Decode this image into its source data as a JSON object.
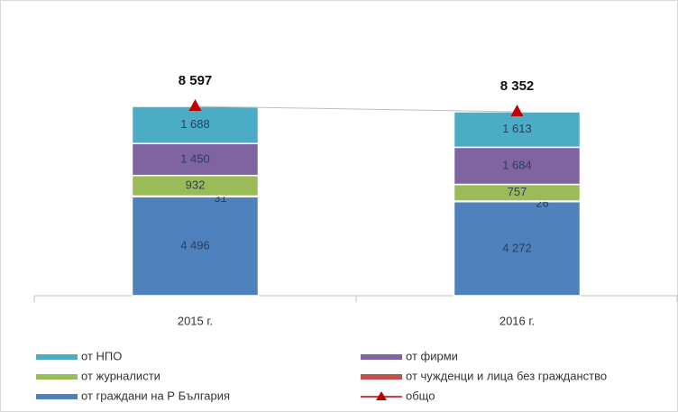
{
  "chart_data": {
    "type": "bar",
    "stacked": true,
    "categories": [
      "2015 г.",
      "2016 г."
    ],
    "series": [
      {
        "name": "от граждани на Р България",
        "color": "#4f81bd",
        "values": [
          4496,
          4272
        ],
        "value_labels": [
          "4 496",
          "4 272"
        ]
      },
      {
        "name": "от чужденци и лица без гражданство",
        "color": "#c0504d",
        "values": [
          31,
          26
        ]
      },
      {
        "name": "от журналисти",
        "color": "#9bbb59",
        "values": [
          932,
          757
        ]
      },
      {
        "name": "от фирми",
        "color": "#8064a2",
        "values": [
          1450,
          1684
        ],
        "value_labels": [
          "1 450",
          "1 684"
        ]
      },
      {
        "name": "от НПО",
        "color": "#4bacc6",
        "values": [
          1688,
          1613
        ],
        "value_labels": [
          "1 688",
          "1 613"
        ]
      },
      {
        "name": "общо",
        "type": "line",
        "color": "#c00000",
        "values": [
          8597,
          8352
        ],
        "value_labels": [
          "8 597",
          "8 352"
        ]
      }
    ]
  }
}
